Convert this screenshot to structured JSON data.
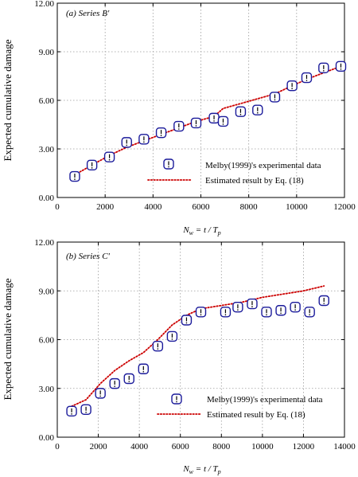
{
  "chart_data": [
    {
      "type": "scatter",
      "panel_label": "(a) Series B'",
      "ylabel": "Expected cumulative damage",
      "xlabel": "N_w = t / T_p",
      "xlabel_main": "N",
      "xlabel_sub": "w",
      "xlabel_rest": " = t / T",
      "xlabel_sub2": "p",
      "xlim": [
        0,
        12000
      ],
      "ylim": [
        0,
        12
      ],
      "xticks": [
        0,
        2000,
        4000,
        6000,
        8000,
        10000,
        12000
      ],
      "yticks": [
        0.0,
        3.0,
        6.0,
        9.0,
        12.0
      ],
      "ytick_labels": [
        "0.00",
        "3.00",
        "6.00",
        "9.00",
        "12.00"
      ],
      "grid": true,
      "legend_position": "bottom-right",
      "series": [
        {
          "name": "Melby(1999)'s experimental data",
          "marker": "rounded-square-exclamation",
          "x": [
            730,
            1450,
            2180,
            2900,
            3620,
            4340,
            5080,
            5800,
            6550,
            6930,
            7660,
            8370,
            9090,
            9810,
            10420,
            11130,
            11850
          ],
          "y": [
            1.3,
            2.0,
            2.5,
            3.4,
            3.6,
            4.0,
            4.4,
            4.6,
            4.9,
            4.7,
            5.3,
            5.4,
            6.2,
            6.9,
            7.4,
            8.0,
            8.1
          ]
        },
        {
          "name": "Estimated result by Eq. (18)",
          "style": "dotted",
          "color": "#cc0000",
          "x": [
            730,
            1450,
            2180,
            2900,
            3620,
            4340,
            5080,
            5800,
            6550,
            6930,
            7660,
            8370,
            9090,
            9810,
            10420,
            11130,
            11850
          ],
          "y": [
            1.4,
            2.0,
            2.6,
            3.1,
            3.5,
            3.9,
            4.3,
            4.7,
            5.0,
            5.5,
            5.8,
            6.1,
            6.4,
            6.9,
            7.3,
            7.7,
            8.1
          ]
        }
      ],
      "legend_marker_series": 0
    },
    {
      "type": "scatter",
      "panel_label": "(b) Series C'",
      "ylabel": "Expected cumulative damage",
      "xlabel": "N_w = t / T_p",
      "xlabel_main": "N",
      "xlabel_sub": "w",
      "xlabel_rest": " = t / T",
      "xlabel_sub2": "p",
      "xlim": [
        0,
        14000
      ],
      "ylim": [
        0,
        12
      ],
      "xticks": [
        0,
        2000,
        4000,
        6000,
        8000,
        10000,
        12000,
        14000
      ],
      "yticks": [
        0.0,
        3.0,
        6.0,
        9.0,
        12.0
      ],
      "ytick_labels": [
        "0.00",
        "3.00",
        "6.00",
        "9.00",
        "12.00"
      ],
      "grid": true,
      "legend_position": "bottom-right",
      "series": [
        {
          "name": "Melby(1999)'s experimental data",
          "marker": "rounded-square-exclamation",
          "x": [
            700,
            1400,
            2100,
            2800,
            3500,
            4200,
            4900,
            5600,
            6300,
            7000,
            8200,
            8800,
            9500,
            10200,
            10900,
            11600,
            12300,
            13000
          ],
          "y": [
            1.6,
            1.7,
            2.7,
            3.3,
            3.6,
            4.2,
            5.6,
            6.2,
            7.2,
            7.7,
            7.7,
            8.0,
            8.2,
            7.7,
            7.8,
            8.0,
            7.7,
            8.4
          ]
        },
        {
          "name": "Estimated result by Eq. (18)",
          "style": "dotted",
          "color": "#cc0000",
          "x": [
            700,
            1400,
            2100,
            2800,
            3500,
            4200,
            4900,
            5600,
            6300,
            7000,
            8000,
            9000,
            10000,
            11000,
            12000,
            13000
          ],
          "y": [
            1.9,
            2.3,
            3.3,
            4.1,
            4.7,
            5.2,
            6.0,
            6.9,
            7.5,
            7.9,
            8.1,
            8.3,
            8.6,
            8.8,
            9.0,
            9.3
          ]
        }
      ],
      "legend_marker_series": 0
    }
  ]
}
